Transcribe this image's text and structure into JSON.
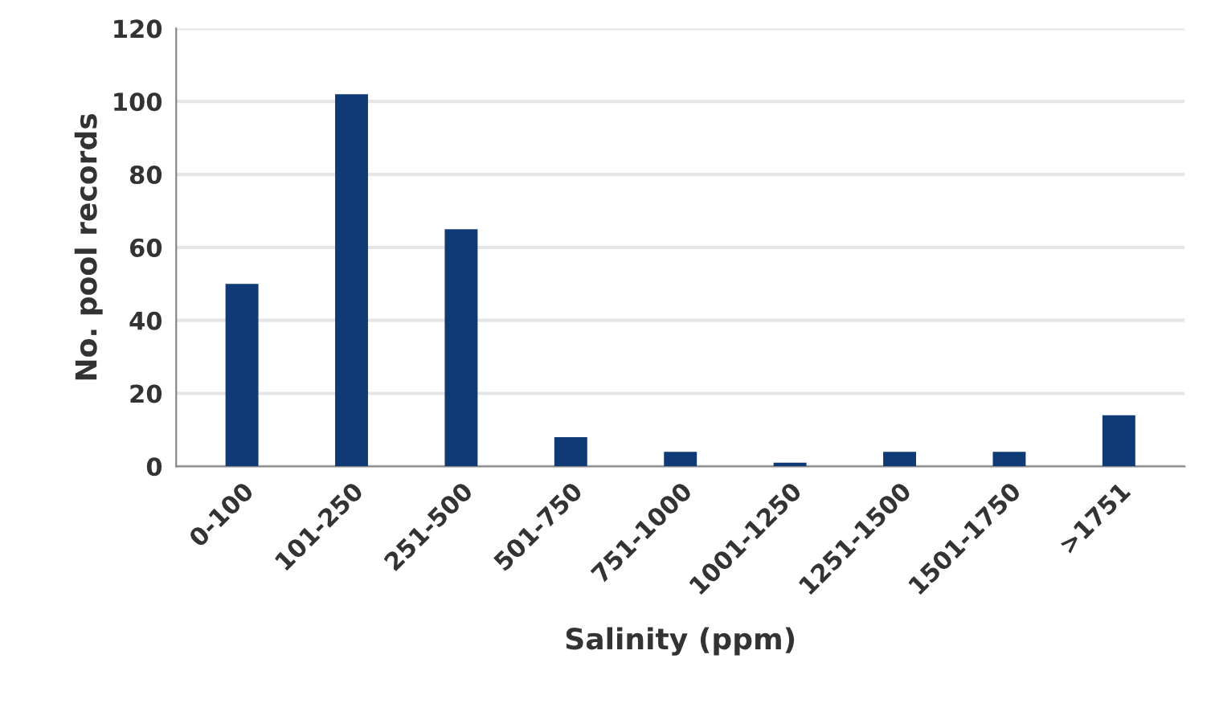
{
  "chart_data": {
    "type": "bar",
    "xlabel": "Salinity (ppm)",
    "ylabel": "No. pool records",
    "categories": [
      "0-100",
      "101-250",
      "251-500",
      "501-750",
      "751-1000",
      "1001-1250",
      "1251-1500",
      "1501-1750",
      ">1751"
    ],
    "values": [
      50,
      102,
      65,
      8,
      4,
      1,
      4,
      4,
      14
    ],
    "color": "#0f3a75",
    "ylim": [
      0,
      120
    ],
    "yticks": [
      0,
      20,
      40,
      60,
      80,
      100,
      120
    ],
    "grid": "y",
    "legend": false
  }
}
